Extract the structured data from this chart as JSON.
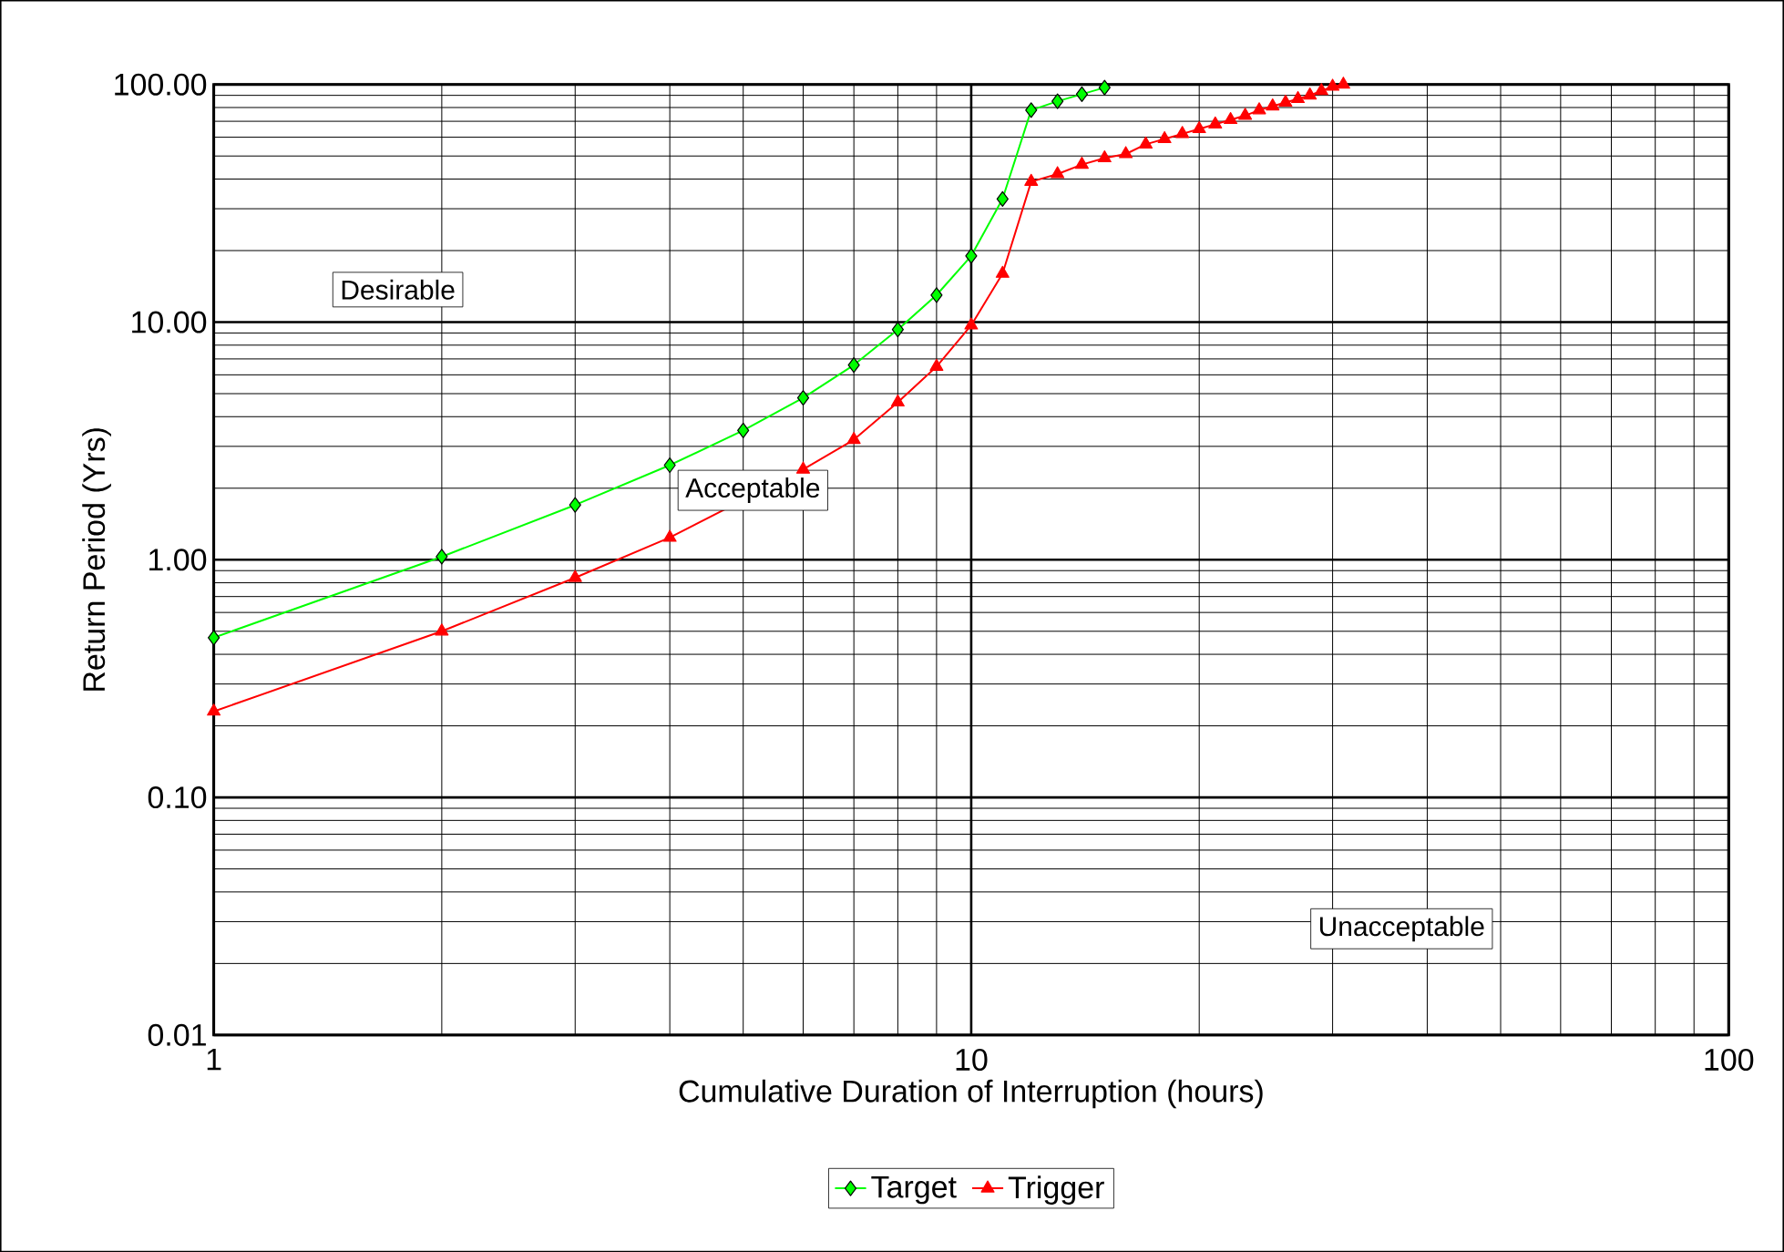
{
  "chart_data": {
    "type": "line",
    "xlabel": "Cumulative Duration of Interruption (hours)",
    "ylabel": "Return Period (Yrs)",
    "log": "xy",
    "grid": true,
    "legend": "bottom",
    "xlim": [
      1,
      100
    ],
    "ylim": [
      0.01,
      100
    ],
    "xticks": [
      1,
      10,
      100
    ],
    "yticks": [
      {
        "value": 0.01,
        "label": "0.01"
      },
      {
        "value": 0.1,
        "label": "0.10"
      },
      {
        "value": 1,
        "label": "1.00"
      },
      {
        "value": 10,
        "label": "10.00"
      },
      {
        "value": 100,
        "label": "100.00"
      }
    ],
    "annotations": [
      "Desirable",
      "Acceptable",
      "Unacceptable"
    ],
    "series": [
      {
        "name": "Target",
        "color": "#00ff00",
        "marker": "diamond",
        "x": [
          1,
          2,
          3,
          4,
          5,
          6,
          7,
          8,
          9,
          10,
          11,
          12,
          13,
          14,
          15
        ],
        "values": [
          0.47,
          1.03,
          1.7,
          2.5,
          3.5,
          4.8,
          6.6,
          9.3,
          13,
          19,
          33,
          78,
          85,
          91,
          97
        ]
      },
      {
        "name": "Trigger",
        "color": "#ff0000",
        "marker": "triangle",
        "x": [
          1,
          2,
          3,
          4,
          5,
          6,
          7,
          8,
          9,
          10,
          11,
          12,
          13,
          14,
          15,
          16,
          17,
          18,
          19,
          20,
          21,
          22,
          23,
          24,
          25,
          26,
          27,
          28,
          29,
          30,
          31
        ],
        "values": [
          0.23,
          0.5,
          0.84,
          1.24,
          null,
          2.4,
          3.2,
          4.6,
          6.5,
          9.7,
          16,
          39,
          42,
          46,
          49,
          51,
          56,
          59,
          62,
          65,
          68,
          71,
          74,
          78,
          81,
          84,
          87,
          90,
          94,
          98,
          100
        ]
      }
    ]
  }
}
